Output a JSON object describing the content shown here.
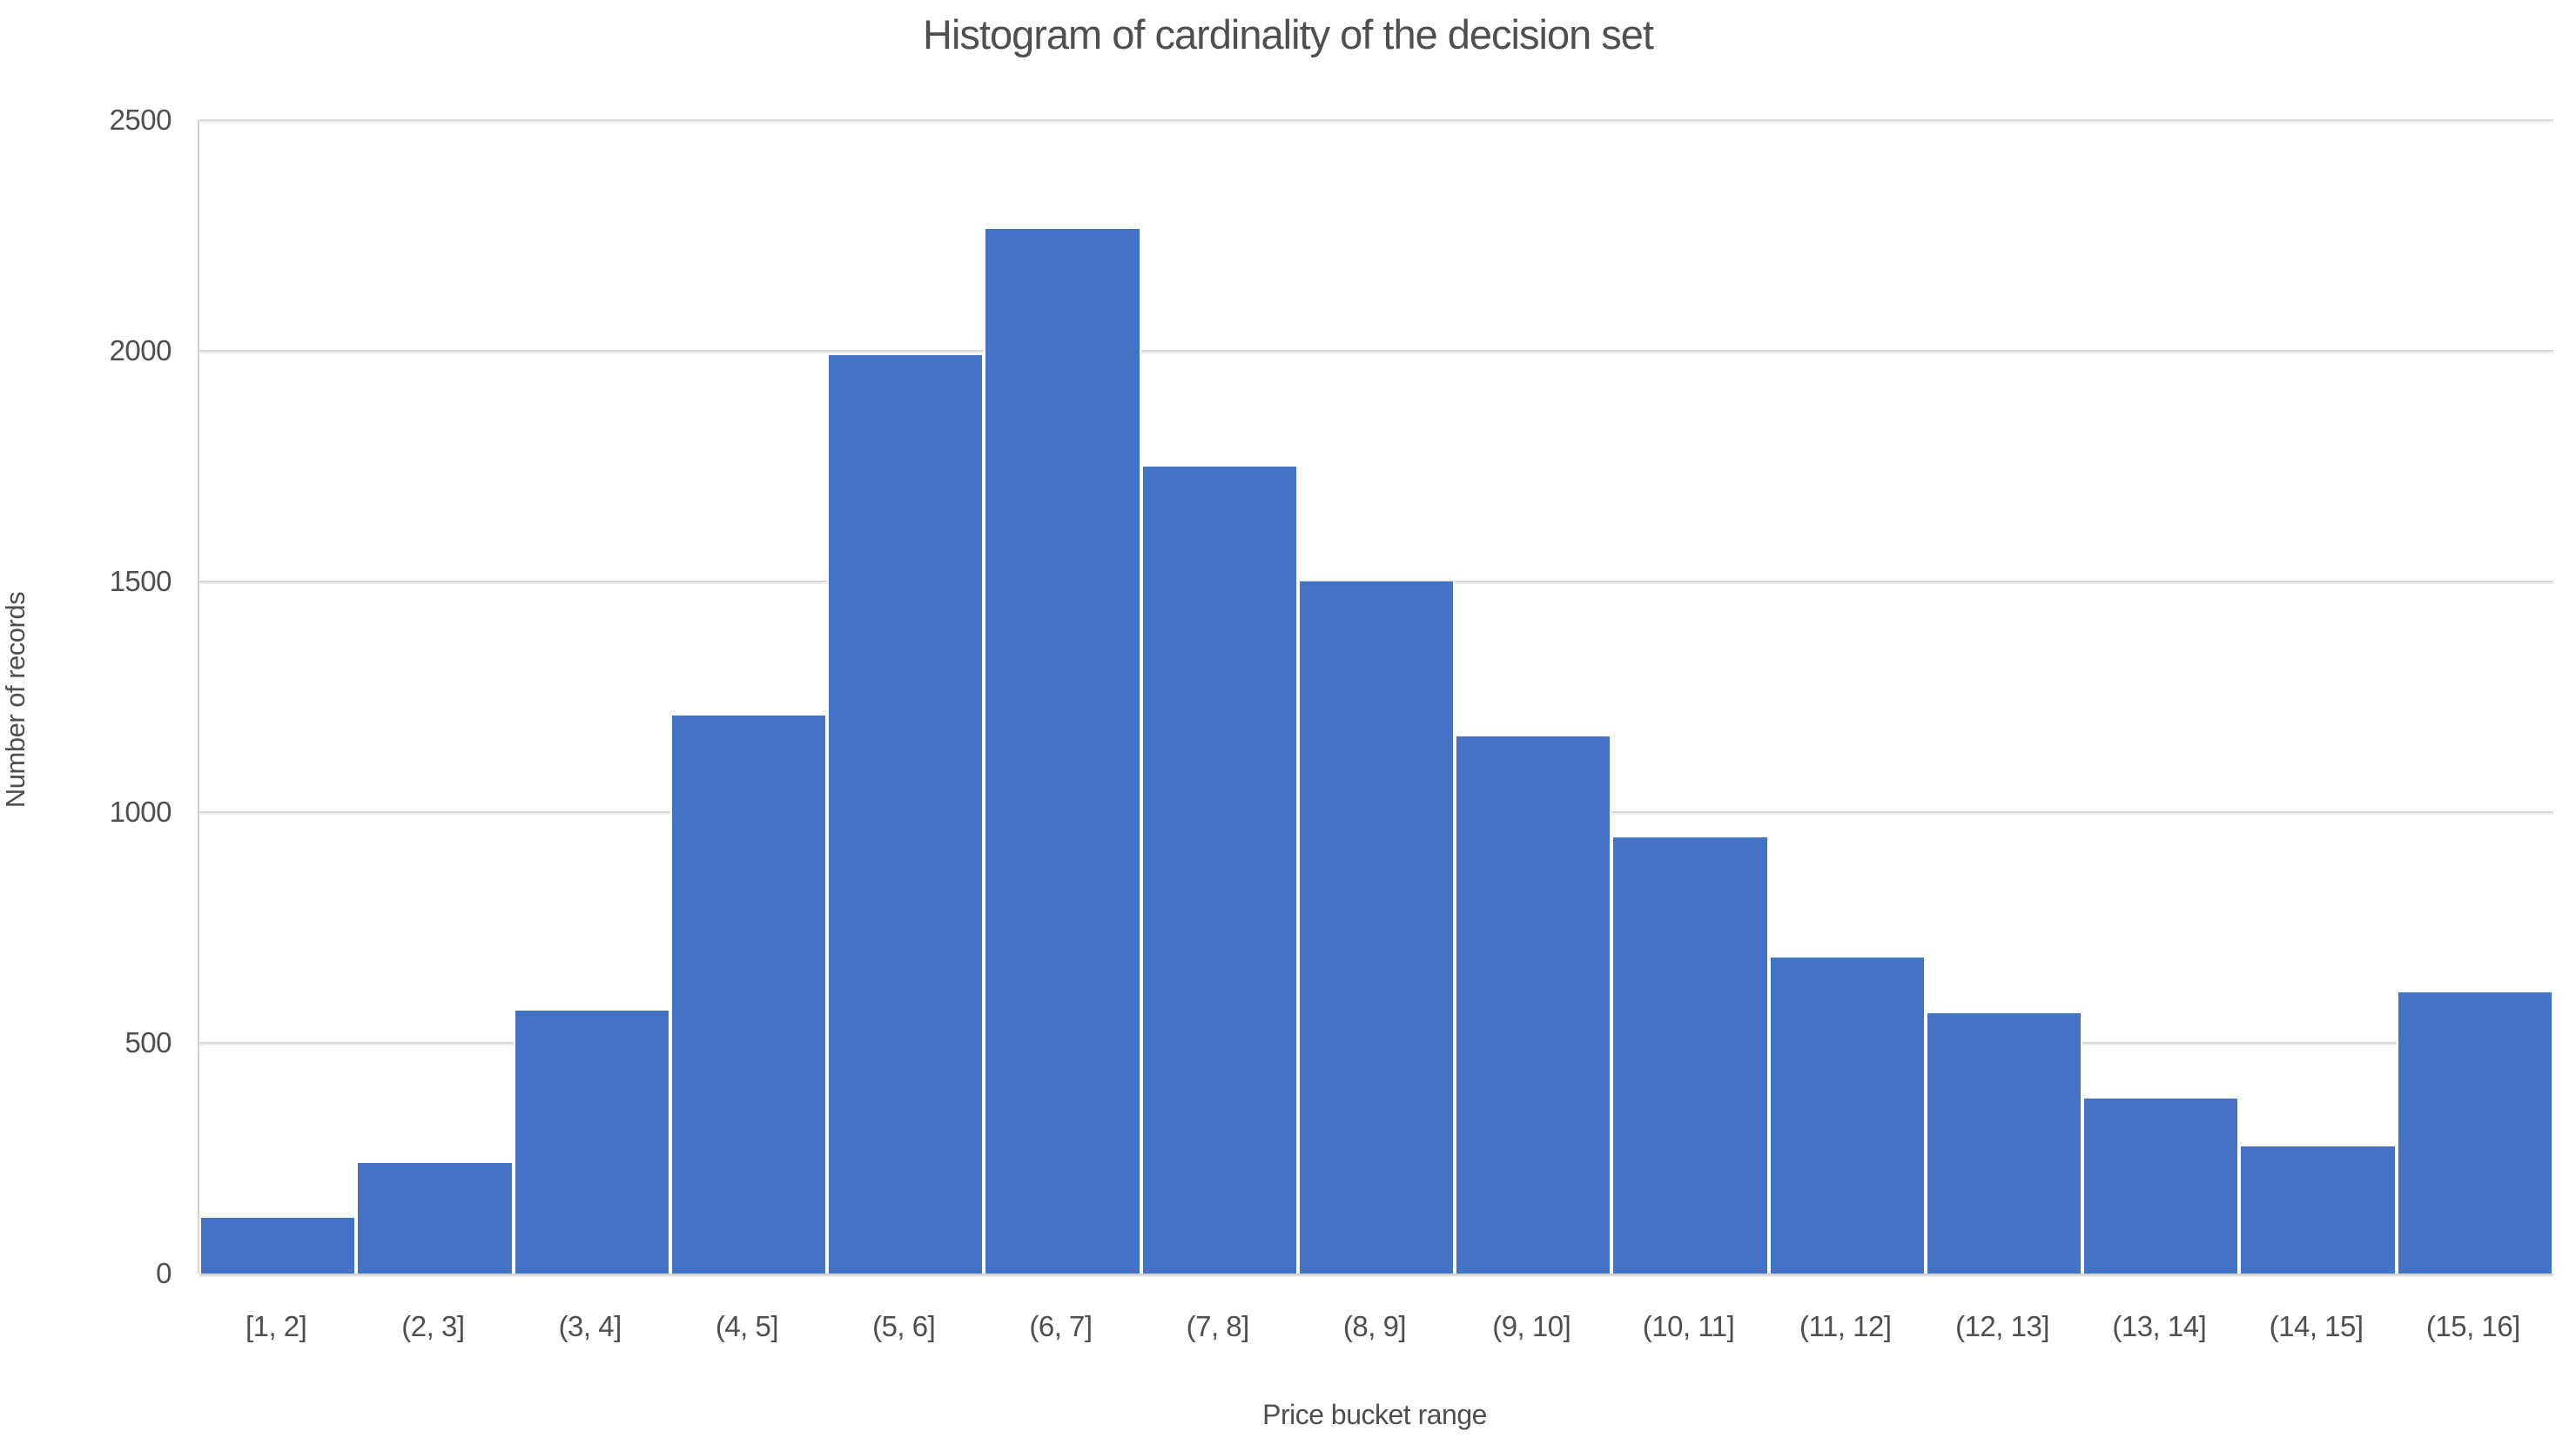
{
  "chart_data": {
    "type": "bar",
    "title": "Histogram of cardinality of the decision set",
    "xlabel": "Price bucket range",
    "ylabel": "Number of records",
    "categories": [
      "[1, 2]",
      "(2, 3]",
      "(3, 4]",
      "(4, 5]",
      "(5, 6]",
      "(6, 7]",
      "(7, 8]",
      "(8, 9]",
      "(9, 10]",
      "(10, 11]",
      "(11, 12]",
      "(12, 13]",
      "(13, 14]",
      "(14, 15]",
      "(15, 16]"
    ],
    "values": [
      120,
      240,
      570,
      1210,
      1990,
      2265,
      1750,
      1500,
      1165,
      945,
      685,
      565,
      380,
      275,
      610
    ],
    "ylim": [
      0,
      2500
    ],
    "yticks": [
      0,
      500,
      1000,
      1500,
      2000,
      2500
    ],
    "grid": true,
    "legend_position": "none",
    "colors": {
      "bar": "#4472C4",
      "grid": "#d9d9d9",
      "grid_shadow": "#efefef",
      "axis_line": "#d2d2d2",
      "text": "#4f4f4f",
      "background": "#ffffff"
    }
  }
}
